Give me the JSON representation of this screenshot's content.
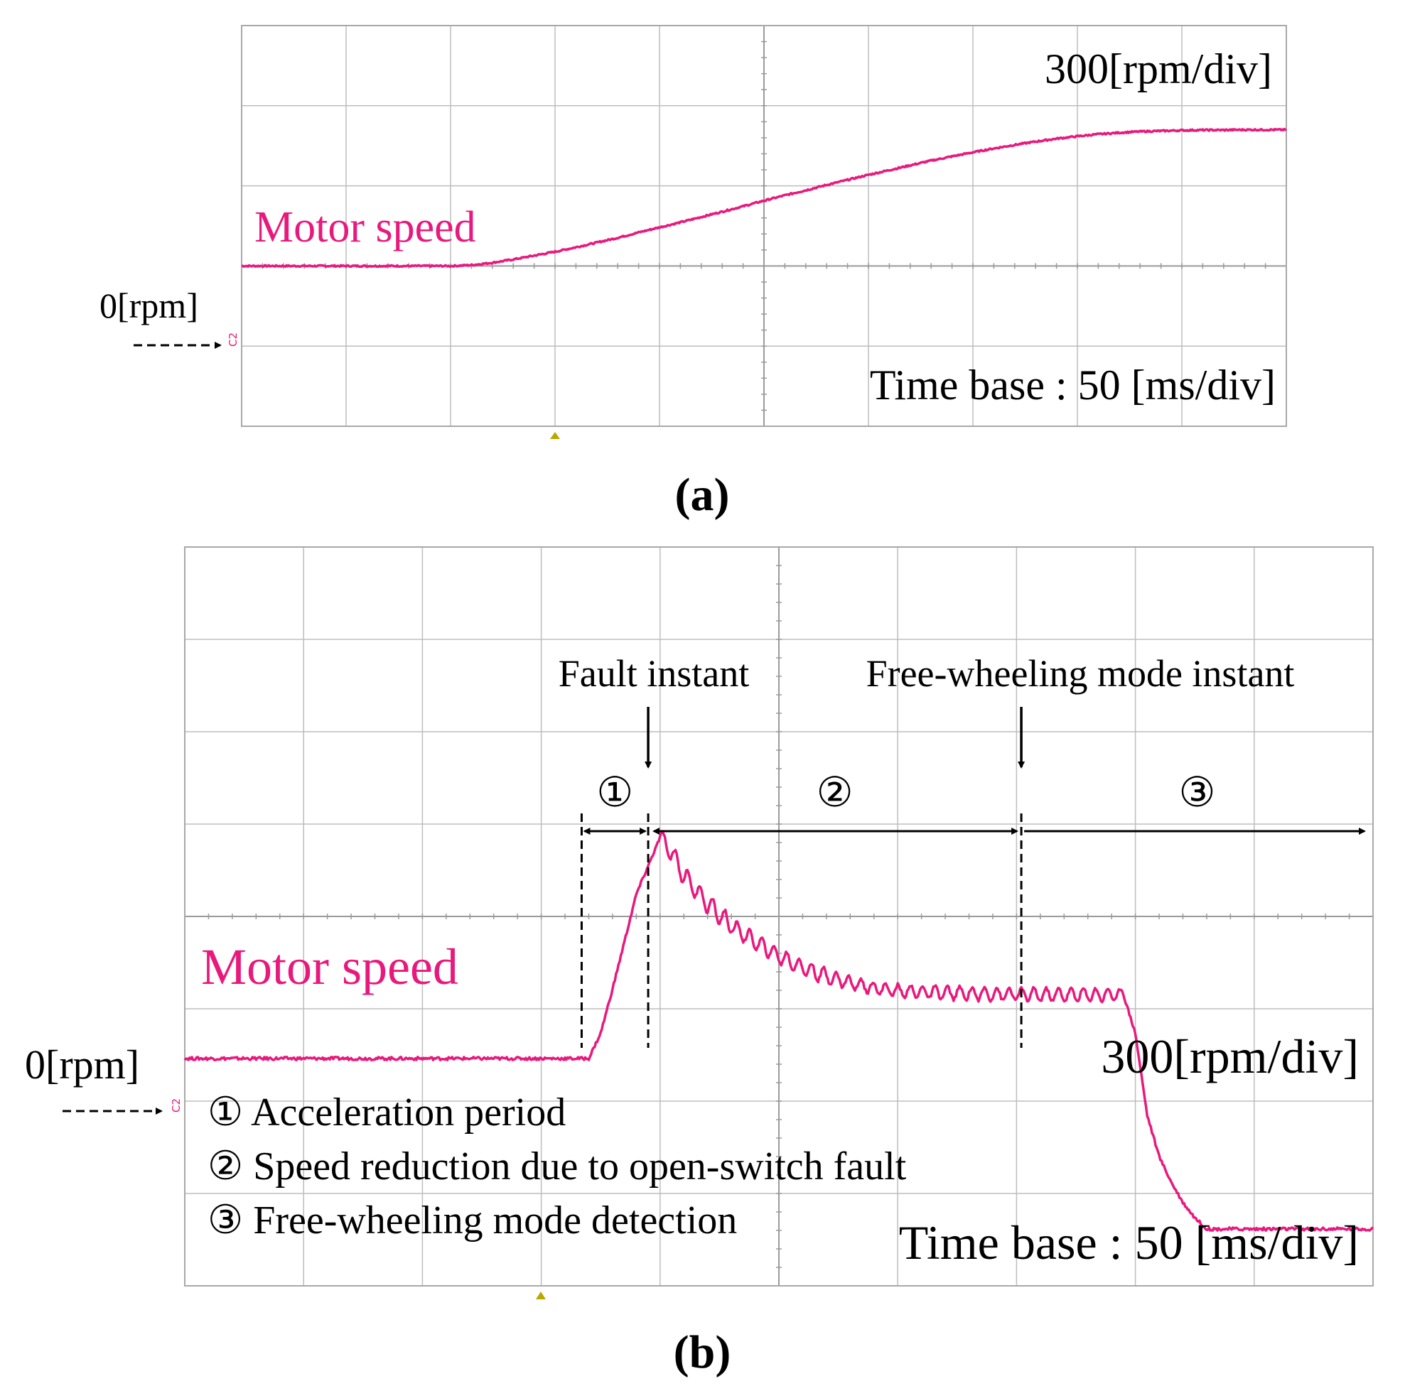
{
  "colors": {
    "trace": "#e8197d",
    "grid": "#bdbdbd",
    "frame": "#a8a8a8",
    "annot": "#000000",
    "trigger": "#b8a800"
  },
  "chart_data": [
    {
      "type": "line",
      "panel_label": "(a)",
      "series": [
        {
          "label": "Motor speed",
          "x": [
            0,
            10,
            20,
            30,
            40,
            50,
            60,
            70,
            80,
            90,
            100,
            110,
            120,
            130,
            140,
            150,
            160,
            170,
            180,
            190,
            200,
            210,
            220,
            230,
            240,
            250,
            260,
            270,
            280,
            290,
            300,
            310,
            320,
            330,
            340,
            350,
            360,
            370,
            380,
            390,
            400,
            410,
            420,
            430,
            440,
            450,
            460,
            470,
            480,
            490,
            500
          ],
          "y": [
            270,
            270,
            270,
            270,
            270,
            270,
            270,
            270,
            270,
            270,
            270,
            273,
            281,
            292,
            305,
            318,
            333,
            349,
            365,
            383,
            400,
            417,
            435,
            453,
            471,
            490,
            508,
            525,
            543,
            560,
            577,
            593,
            609,
            625,
            639,
            653,
            666,
            678,
            689,
            699,
            707,
            714,
            719,
            723,
            725,
            727,
            728,
            728,
            729,
            729,
            729
          ]
        }
      ],
      "x_unit": "ms",
      "y_unit": "rpm",
      "xlim": [
        0,
        500
      ],
      "ylim": [
        -270,
        1080
      ],
      "grid": true,
      "annotations": {
        "scale": "300[rpm/div]",
        "timebase": "Time base : 50 [ms/div]",
        "zero_marker": "0[rpm]",
        "channel": "C2"
      }
    },
    {
      "type": "line",
      "panel_label": "(b)",
      "series": [
        {
          "label": "Motor speed",
          "x": [
            0,
            50,
            100,
            150,
            170,
            175,
            180,
            185,
            190,
            195,
            200,
            205,
            210,
            220,
            230,
            240,
            250,
            260,
            270,
            280,
            290,
            300,
            320,
            340,
            360,
            380,
            395,
            400,
            405,
            410,
            415,
            420,
            425,
            430,
            450,
            500
          ],
          "y": [
            270,
            270,
            270,
            270,
            270,
            310,
            380,
            455,
            530,
            575,
            620,
            595,
            560,
            515,
            480,
            455,
            432,
            414,
            400,
            390,
            382,
            377,
            374,
            372,
            371,
            371,
            371,
            310,
            180,
            115,
            75,
            42,
            18,
            0,
            0,
            0
          ]
        }
      ],
      "x_unit": "ms",
      "y_unit": "rpm",
      "xlim": [
        0,
        500
      ],
      "ylim": [
        -90,
        1080
      ],
      "grid": true,
      "annotations": {
        "scale": "300[rpm/div]",
        "timebase": "Time base : 50 [ms/div]",
        "zero_marker": "0[rpm]",
        "channel": "C2",
        "fault_instant": {
          "label": "Fault instant",
          "x": 195
        },
        "freewheel_instant": {
          "label": "Free-wheeling mode instant",
          "x": 352
        },
        "acceleration_start": 167,
        "periods": [
          "①",
          "②",
          "③"
        ],
        "legend": [
          "① Acceleration period",
          "② Speed reduction due to open-switch fault",
          "③ Free-wheeling mode detection"
        ]
      }
    }
  ]
}
